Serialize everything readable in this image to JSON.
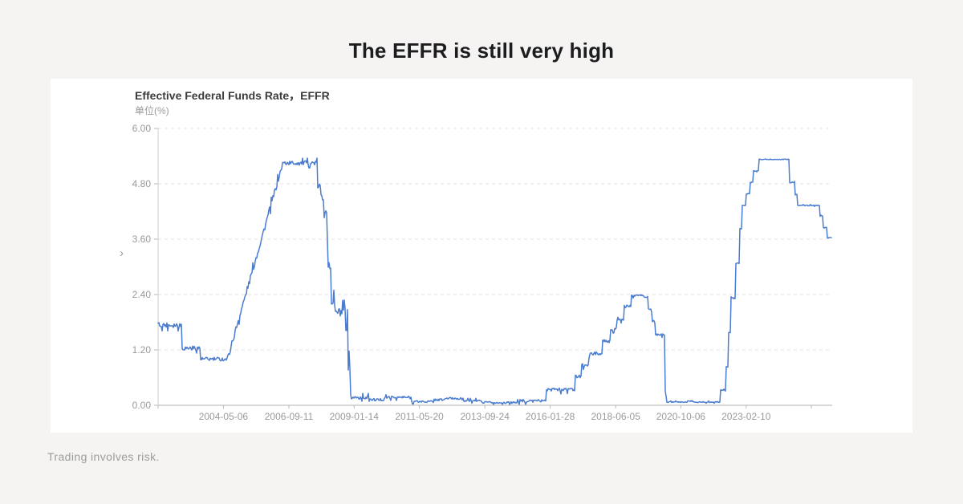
{
  "page": {
    "title": "The EFFR is still very high",
    "footer": "Trading involves risk.",
    "background_color": "#f5f4f2"
  },
  "icons": {
    "collapse_chevron": "›"
  },
  "chart_data": {
    "type": "line",
    "title": "Effective Federal Funds Rate，EFFR",
    "unit_label": "单位(%)",
    "series_name": "EFFR",
    "line_color": "#4a7cd0",
    "grid": "horizontal dashed",
    "legend": "none",
    "x_domain_year": [
      2002.0,
      2026.2
    ],
    "ylim": [
      0,
      6
    ],
    "y_ticks": [
      {
        "v": 0.0,
        "label": "0.00"
      },
      {
        "v": 1.2,
        "label": "1.20"
      },
      {
        "v": 2.4,
        "label": "2.40"
      },
      {
        "v": 3.6,
        "label": "3.60"
      },
      {
        "v": 4.8,
        "label": "4.80"
      },
      {
        "v": 6.0,
        "label": "6.00"
      }
    ],
    "x_ticks": [
      {
        "t": 2002.0,
        "label": ""
      },
      {
        "t": 2004.345,
        "label": "2004-05-06"
      },
      {
        "t": 2006.696,
        "label": "2006-09-11"
      },
      {
        "t": 2009.038,
        "label": "2009-01-14"
      },
      {
        "t": 2011.381,
        "label": "2011-05-20"
      },
      {
        "t": 2013.731,
        "label": "2013-09-24"
      },
      {
        "t": 2016.075,
        "label": "2016-01-28"
      },
      {
        "t": 2018.427,
        "label": "2018-06-05"
      },
      {
        "t": 2020.766,
        "label": "2020-10-06"
      },
      {
        "t": 2023.112,
        "label": "2023-02-10"
      },
      {
        "t": 2025.45,
        "label": ""
      }
    ],
    "segments_note": "piecewise EFFR level in % : [year_start, year_end, value_start, value_end, daily_noise_amp, noise_mode(0=symmetric,1=downward-dips)]",
    "segments": [
      [
        2002.0,
        2002.85,
        1.74,
        1.74,
        0.06,
        0
      ],
      [
        2002.85,
        2003.5,
        1.24,
        1.24,
        0.05,
        0
      ],
      [
        2003.5,
        2004.49,
        1.0,
        1.0,
        0.045,
        0
      ],
      [
        2004.49,
        2006.48,
        1.0,
        5.25,
        0.07,
        0
      ],
      [
        2006.48,
        2007.72,
        5.25,
        5.25,
        0.05,
        0
      ],
      [
        2007.72,
        2007.84,
        4.75,
        4.75,
        0.07,
        0
      ],
      [
        2007.84,
        2007.95,
        4.5,
        4.5,
        0.09,
        0
      ],
      [
        2007.95,
        2008.06,
        4.25,
        4.25,
        0.09,
        0
      ],
      [
        2008.06,
        2008.1,
        3.5,
        3.5,
        0.08,
        0
      ],
      [
        2008.1,
        2008.22,
        3.0,
        3.0,
        0.12,
        0
      ],
      [
        2008.22,
        2008.36,
        2.25,
        2.25,
        0.12,
        0
      ],
      [
        2008.36,
        2008.74,
        2.0,
        2.0,
        0.13,
        0
      ],
      [
        2008.74,
        2008.8,
        1.5,
        1.5,
        0.65,
        0
      ],
      [
        2008.8,
        2008.89,
        0.55,
        0.55,
        0.3,
        0
      ],
      [
        2008.89,
        2008.97,
        0.2,
        0.2,
        0.1,
        0
      ],
      [
        2008.97,
        2009.6,
        0.17,
        0.17,
        0.04,
        0
      ],
      [
        2009.6,
        2010.1,
        0.12,
        0.12,
        0.03,
        0
      ],
      [
        2010.1,
        2011.1,
        0.17,
        0.17,
        0.03,
        0
      ],
      [
        2011.1,
        2011.9,
        0.08,
        0.08,
        0.025,
        0
      ],
      [
        2011.9,
        2012.3,
        0.12,
        0.12,
        0.025,
        0
      ],
      [
        2012.3,
        2012.9,
        0.15,
        0.15,
        0.025,
        0
      ],
      [
        2012.9,
        2013.6,
        0.1,
        0.1,
        0.025,
        0
      ],
      [
        2013.6,
        2014.9,
        0.08,
        0.08,
        0.03,
        1
      ],
      [
        2014.9,
        2015.93,
        0.13,
        0.13,
        0.045,
        1
      ],
      [
        2015.93,
        2016.96,
        0.38,
        0.38,
        0.05,
        1
      ],
      [
        2016.96,
        2017.2,
        0.66,
        0.66,
        0.05,
        1
      ],
      [
        2017.2,
        2017.46,
        0.91,
        0.91,
        0.05,
        1
      ],
      [
        2017.46,
        2017.96,
        1.16,
        1.16,
        0.05,
        1
      ],
      [
        2017.96,
        2018.22,
        1.42,
        1.42,
        0.05,
        1
      ],
      [
        2018.22,
        2018.46,
        1.7,
        1.7,
        0.05,
        1
      ],
      [
        2018.46,
        2018.73,
        1.91,
        1.91,
        0.05,
        1
      ],
      [
        2018.73,
        2018.97,
        2.18,
        2.18,
        0.05,
        1
      ],
      [
        2018.97,
        2019.45,
        2.4,
        2.4,
        0.03,
        1
      ],
      [
        2019.45,
        2019.6,
        2.37,
        2.37,
        0.03,
        1
      ],
      [
        2019.6,
        2019.73,
        2.12,
        2.12,
        0.04,
        1
      ],
      [
        2019.73,
        2019.85,
        1.88,
        1.82,
        0.05,
        1
      ],
      [
        2019.85,
        2020.19,
        1.55,
        1.55,
        0.03,
        1
      ],
      [
        2020.19,
        2020.24,
        0.6,
        0.3,
        0.25,
        0
      ],
      [
        2020.24,
        2021.0,
        0.07,
        0.07,
        0.012,
        0
      ],
      [
        2021.0,
        2021.2,
        0.09,
        0.09,
        0.012,
        0
      ],
      [
        2021.2,
        2022.17,
        0.07,
        0.07,
        0.012,
        0
      ],
      [
        2022.17,
        2022.37,
        0.33,
        0.33,
        0.01,
        0
      ],
      [
        2022.37,
        2022.46,
        0.83,
        0.83,
        0.01,
        0
      ],
      [
        2022.46,
        2022.57,
        1.58,
        1.58,
        0.01,
        0
      ],
      [
        2022.57,
        2022.72,
        2.33,
        2.33,
        0.01,
        0
      ],
      [
        2022.72,
        2022.86,
        3.08,
        3.08,
        0.01,
        0
      ],
      [
        2022.86,
        2022.96,
        3.83,
        3.83,
        0.01,
        0
      ],
      [
        2022.96,
        2023.09,
        4.33,
        4.33,
        0.01,
        0
      ],
      [
        2023.09,
        2023.26,
        4.58,
        4.58,
        0.01,
        0
      ],
      [
        2023.26,
        2023.37,
        4.83,
        4.83,
        0.01,
        0
      ],
      [
        2023.37,
        2023.56,
        5.08,
        5.08,
        0.01,
        0
      ],
      [
        2023.56,
        2024.65,
        5.33,
        5.33,
        0.01,
        0
      ],
      [
        2024.65,
        2024.85,
        4.83,
        4.83,
        0.01,
        0
      ],
      [
        2024.85,
        2024.96,
        4.58,
        4.58,
        0.01,
        0
      ],
      [
        2024.96,
        2025.76,
        4.33,
        4.33,
        0.01,
        0
      ],
      [
        2025.76,
        2025.88,
        4.1,
        4.1,
        0.01,
        0
      ],
      [
        2025.88,
        2026.02,
        3.86,
        3.86,
        0.01,
        0
      ],
      [
        2026.02,
        2026.18,
        3.63,
        3.63,
        0.01,
        0
      ]
    ],
    "colors": {
      "grid": "#e3e3e3",
      "axis_line": "#b0b0b0",
      "y_axis_line": "#cfcfcf",
      "tick": "#b8b8b8",
      "tick_text": "#999999"
    }
  }
}
